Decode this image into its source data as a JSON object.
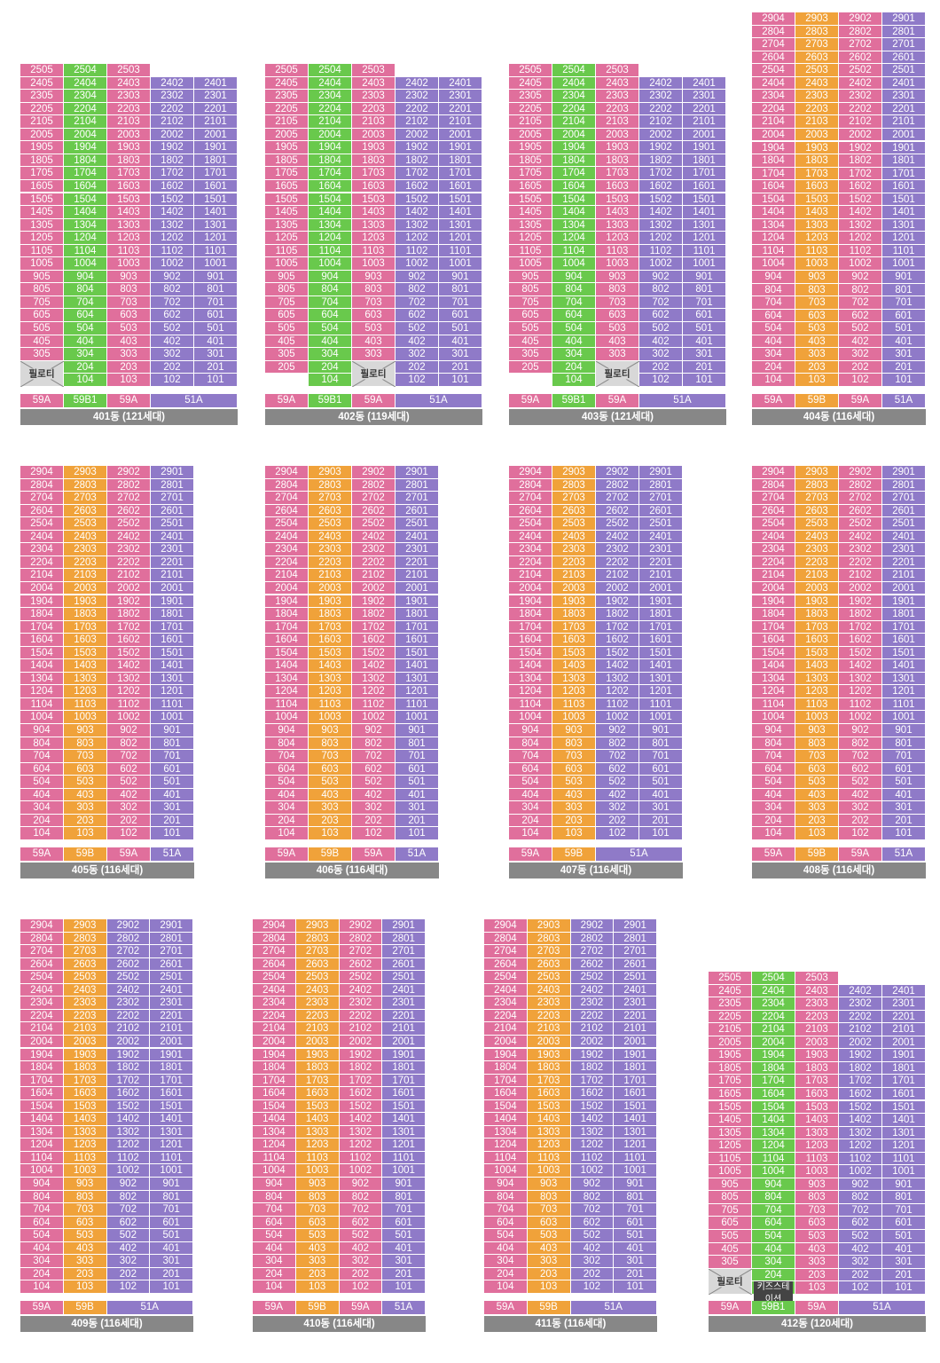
{
  "colors": {
    "59A": "#e06f9c",
    "59B": "#f0a23a",
    "59B1": "#69c94c",
    "51A": "#8f7ac8",
    "pil": "#d8d8d8",
    "label_bg": "#878787"
  },
  "pilotis_label": "필로티",
  "kids_station_label": "키즈스테이션",
  "buildings": [
    {
      "name": "401동 (121세대)",
      "type_labels": [
        "59A",
        "59B1",
        "59A",
        "51A"
      ],
      "units": 121
    },
    {
      "name": "402동 (119세대)",
      "type_labels": [
        "59A",
        "59B1",
        "59A",
        "51A"
      ],
      "units": 119
    },
    {
      "name": "403동 (121세대)",
      "type_labels": [
        "59A",
        "59B1",
        "59A",
        "51A"
      ],
      "units": 121
    },
    {
      "name": "404동 (116세대)",
      "type_labels": [
        "59A",
        "59B",
        "59A",
        "51A"
      ],
      "units": 116
    },
    {
      "name": "405동 (116세대)",
      "type_labels": [
        "59A",
        "59B",
        "59A",
        "51A"
      ],
      "units": 116
    },
    {
      "name": "406동 (116세대)",
      "type_labels": [
        "59A",
        "59B",
        "59A",
        "51A"
      ],
      "units": 116
    },
    {
      "name": "407동 (116세대)",
      "type_labels": [
        "59A",
        "59B",
        "51A"
      ],
      "units": 116
    },
    {
      "name": "408동 (116세대)",
      "type_labels": [
        "59A",
        "59B",
        "59A",
        "51A"
      ],
      "units": 116
    },
    {
      "name": "409동 (116세대)",
      "type_labels": [
        "59A",
        "59B",
        "51A"
      ],
      "units": 116
    },
    {
      "name": "410동 (116세대)",
      "type_labels": [
        "59A",
        "59B",
        "59A",
        "51A"
      ],
      "units": 116
    },
    {
      "name": "411동 (116세대)",
      "type_labels": [
        "59A",
        "59B",
        "51A"
      ],
      "units": 116
    },
    {
      "name": "412동 (120세대)",
      "type_labels": [
        "59A",
        "59B1",
        "59A",
        "51A"
      ],
      "units": 120
    }
  ]
}
